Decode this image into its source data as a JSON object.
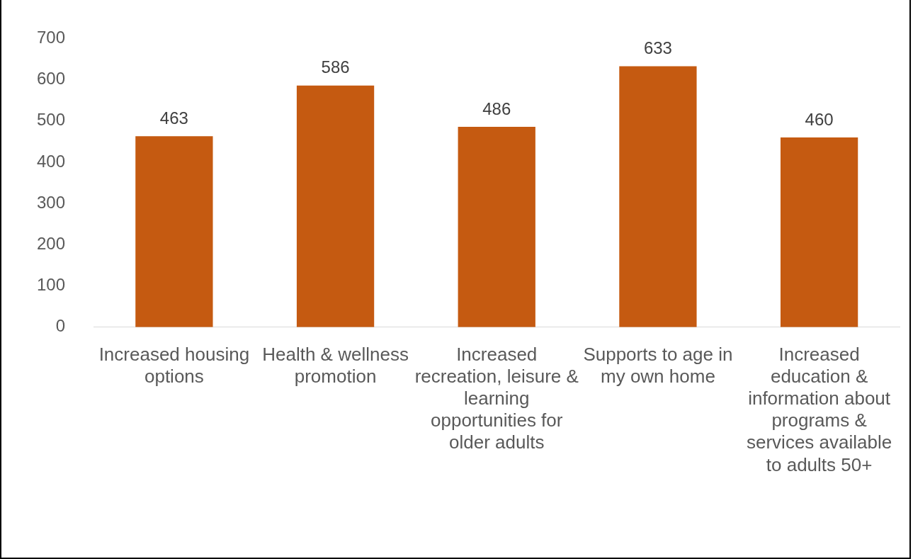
{
  "chart_data": {
    "type": "bar",
    "categories": [
      "Increased housing options",
      "Health & wellness promotion",
      "Increased recreation, leisure & learning opportunities for older adults",
      "Supports to age in my own home",
      "Increased education & information about programs & services available to adults 50+"
    ],
    "values": [
      463,
      586,
      486,
      633,
      460
    ],
    "color": "#c55a11",
    "ylim": [
      0,
      700
    ],
    "yticks": [
      0,
      100,
      200,
      300,
      400,
      500,
      600,
      700
    ],
    "grid": false,
    "legend": false,
    "data_labels": true
  }
}
